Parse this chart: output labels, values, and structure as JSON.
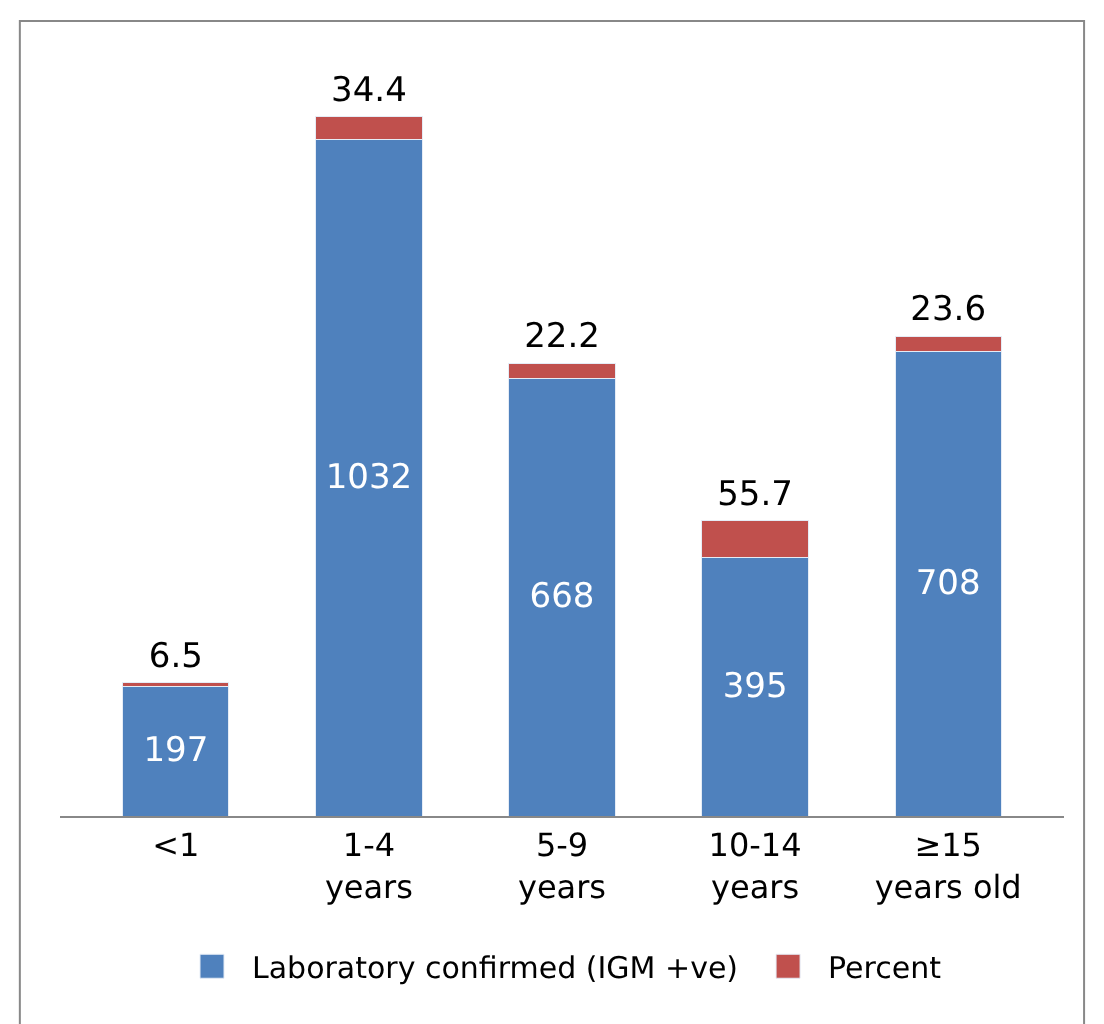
{
  "chart_data": {
    "type": "bar",
    "stacked": true,
    "categories": [
      "<1",
      "1-4 years",
      "5-9 years",
      "10-14 years",
      "≥15 years old"
    ],
    "series": [
      {
        "name": "Laboratory confirmed (IGM +ve)",
        "color": "#4f81bd",
        "values": [
          197,
          1032,
          668,
          395,
          708
        ]
      },
      {
        "name": "Percent",
        "color": "#c0504d",
        "values": [
          6.5,
          34.4,
          22.2,
          55.7,
          23.6
        ]
      }
    ],
    "data_labels": true,
    "legend": "bottom"
  }
}
